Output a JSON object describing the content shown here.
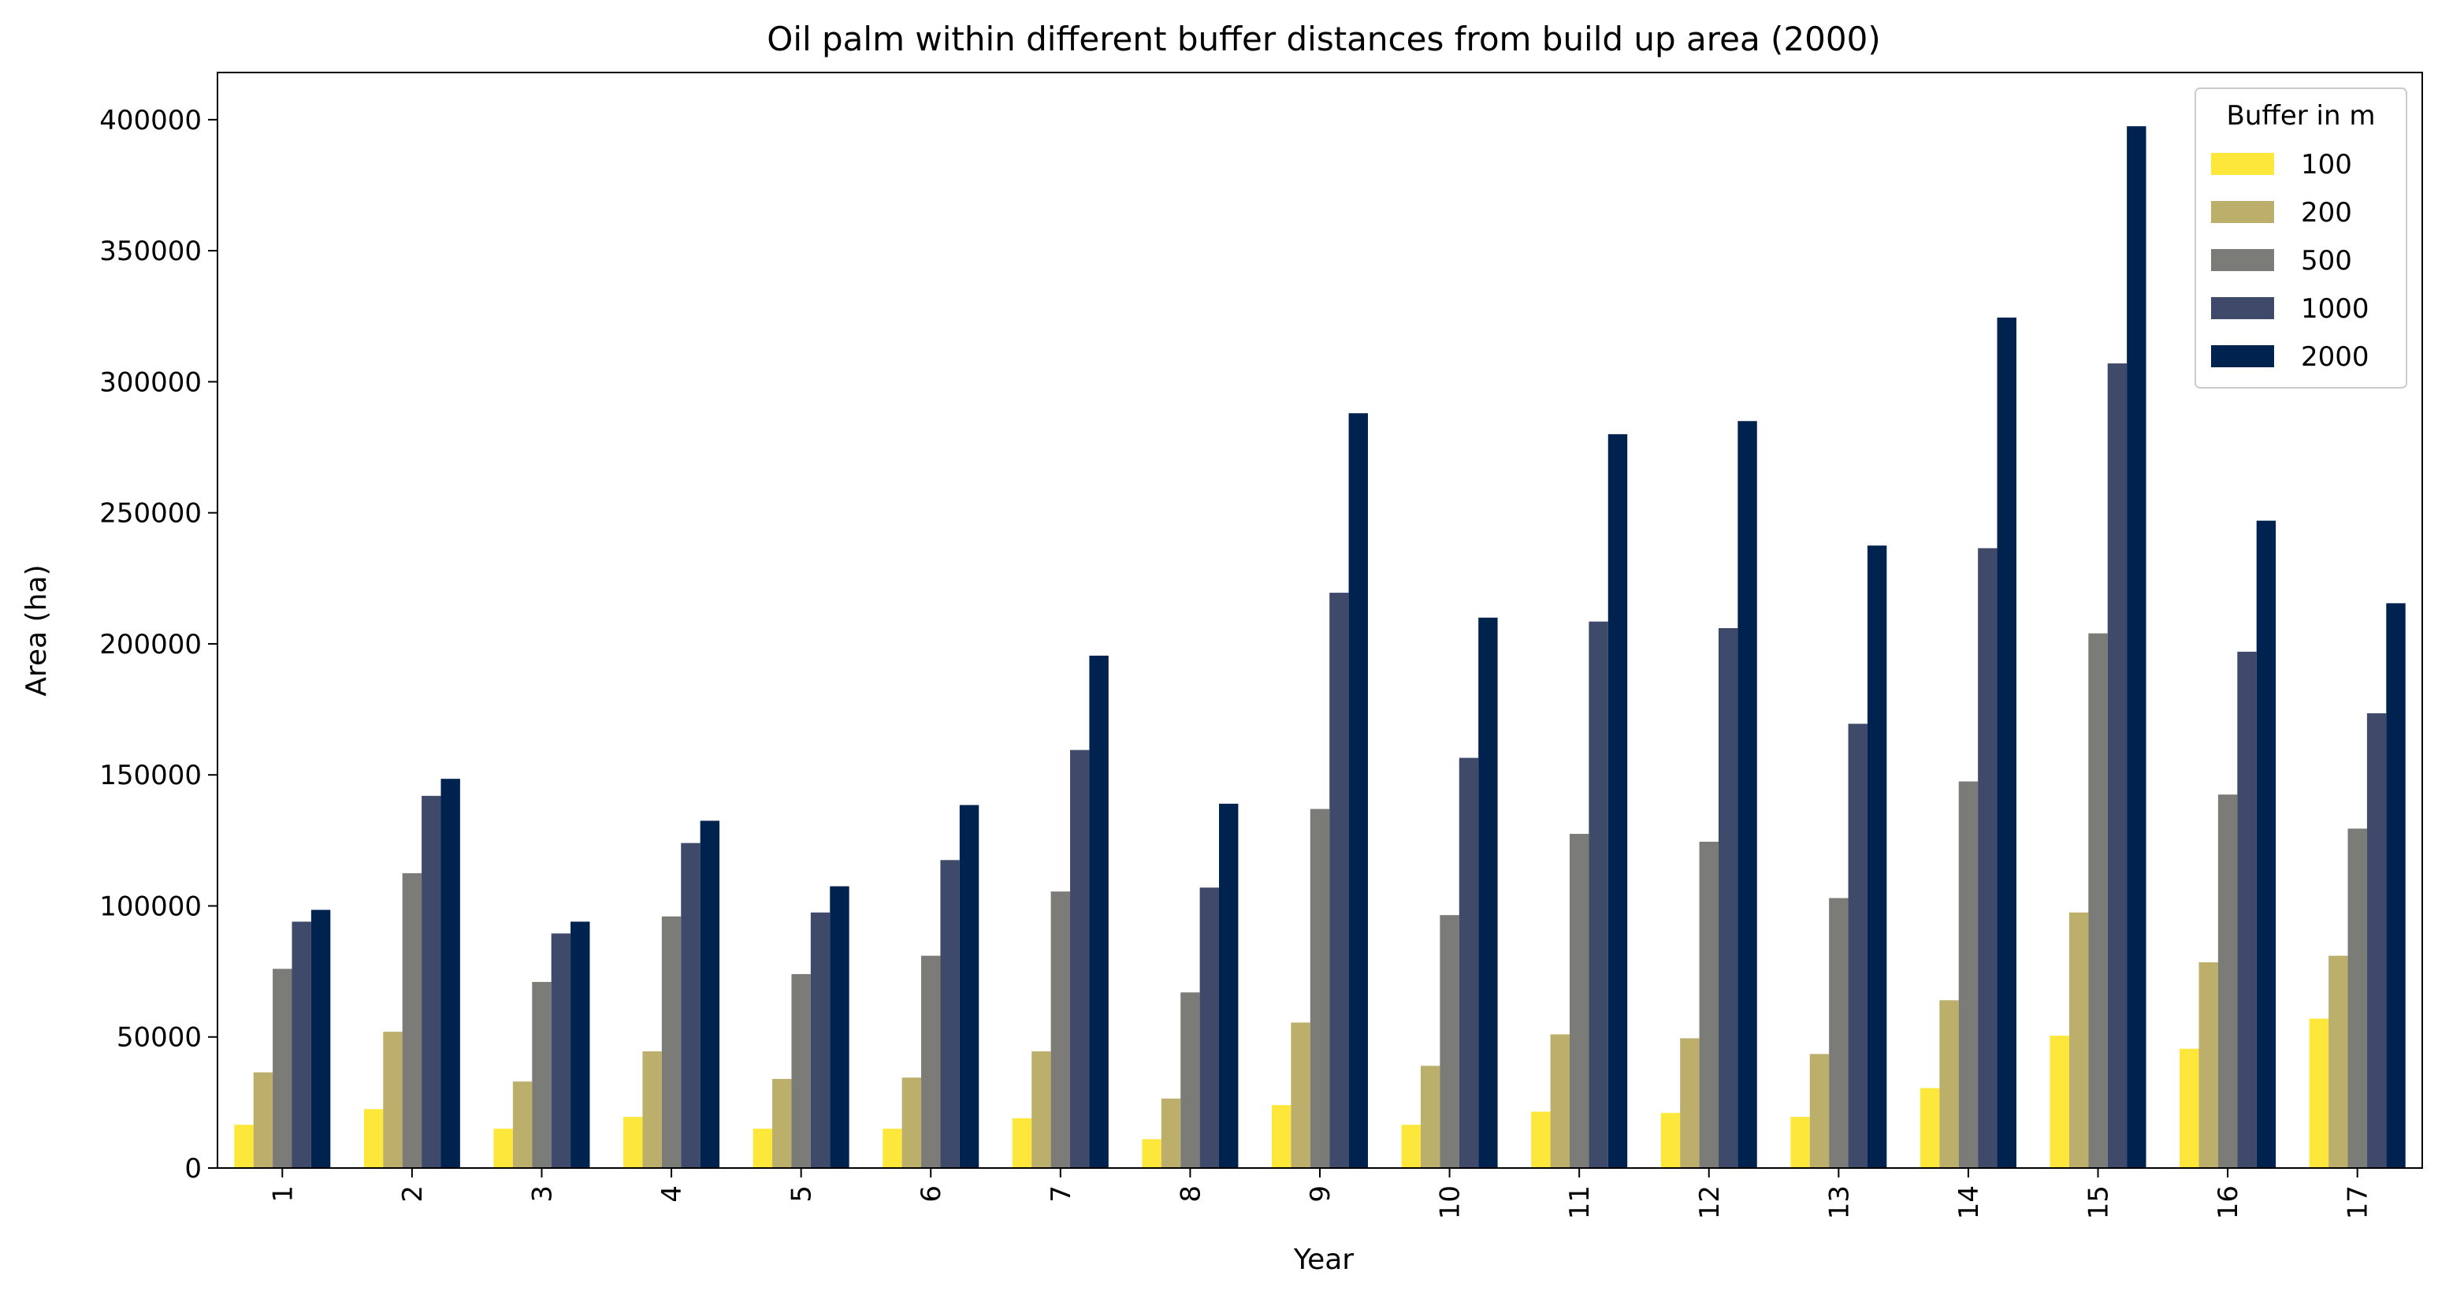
{
  "chart_data": {
    "type": "bar",
    "title": "Oil palm within different buffer distances from build up area (2000)",
    "xlabel": "Year",
    "ylabel": "Area (ha)",
    "categories": [
      "1",
      "2",
      "3",
      "4",
      "5",
      "6",
      "7",
      "8",
      "9",
      "10",
      "11",
      "12",
      "13",
      "14",
      "15",
      "16",
      "17"
    ],
    "ylim": [
      0,
      418000
    ],
    "yticks": [
      0,
      50000,
      100000,
      150000,
      200000,
      250000,
      300000,
      350000,
      400000
    ],
    "grid": false,
    "legend": {
      "title": "Buffer in m",
      "placement": "top-right"
    },
    "series": [
      {
        "name": "100",
        "color": "#fde73b",
        "values": [
          16500,
          22500,
          15000,
          19500,
          15000,
          15000,
          19000,
          11000,
          24000,
          16500,
          21500,
          21000,
          19500,
          30500,
          50500,
          45500,
          57000
        ]
      },
      {
        "name": "200",
        "color": "#bcaf6c",
        "values": [
          36500,
          52000,
          33000,
          44500,
          34000,
          34500,
          44500,
          26500,
          55500,
          39000,
          51000,
          49500,
          43500,
          64000,
          97500,
          78500,
          81000
        ]
      },
      {
        "name": "500",
        "color": "#7b7b78",
        "values": [
          76000,
          112500,
          71000,
          96000,
          74000,
          81000,
          105500,
          67000,
          137000,
          96500,
          127500,
          124500,
          103000,
          147500,
          204000,
          142500,
          129500
        ]
      },
      {
        "name": "1000",
        "color": "#3f4a6b",
        "values": [
          94000,
          142000,
          89500,
          124000,
          97500,
          117500,
          159500,
          107000,
          219500,
          156500,
          208500,
          206000,
          169500,
          236500,
          307000,
          197000,
          173500
        ]
      },
      {
        "name": "2000",
        "color": "#00224e",
        "values": [
          98500,
          148500,
          94000,
          132500,
          107500,
          138500,
          195500,
          139000,
          288000,
          210000,
          280000,
          285000,
          237500,
          324500,
          397500,
          247000,
          215500
        ]
      }
    ]
  }
}
